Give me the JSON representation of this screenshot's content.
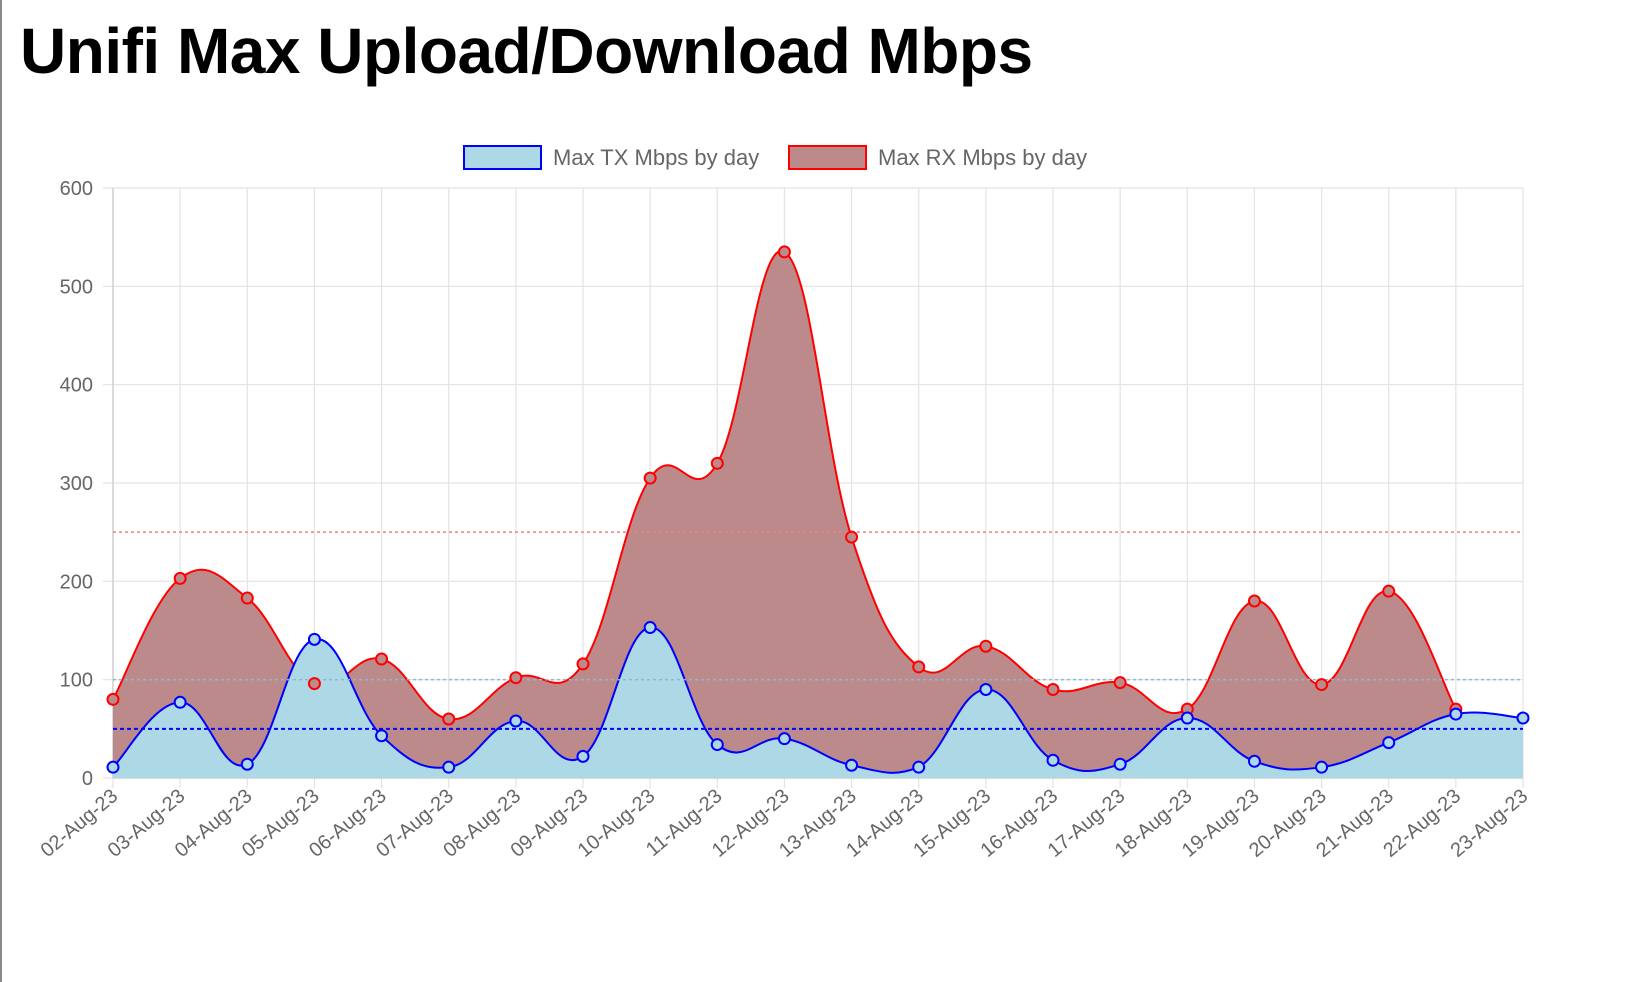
{
  "page": {
    "title": "Unifi Max Upload/Download Mbps"
  },
  "chart_data": {
    "type": "area",
    "categories": [
      "02-Aug-23",
      "03-Aug-23",
      "04-Aug-23",
      "05-Aug-23",
      "06-Aug-23",
      "07-Aug-23",
      "08-Aug-23",
      "09-Aug-23",
      "10-Aug-23",
      "11-Aug-23",
      "12-Aug-23",
      "13-Aug-23",
      "14-Aug-23",
      "15-Aug-23",
      "16-Aug-23",
      "17-Aug-23",
      "18-Aug-23",
      "19-Aug-23",
      "20-Aug-23",
      "21-Aug-23",
      "22-Aug-23",
      "23-Aug-23"
    ],
    "ylim": [
      0,
      600
    ],
    "yticks": [
      0,
      100,
      200,
      300,
      400,
      500,
      600
    ],
    "grid": true,
    "legend_position": "top",
    "series": [
      {
        "name": "Max TX Mbps by day",
        "values": [
          11,
          77,
          14,
          141,
          43,
          11,
          58,
          22,
          153,
          34,
          40,
          13,
          11,
          90,
          18,
          14,
          61,
          17,
          11,
          36,
          65,
          61
        ],
        "line_color": "#0000ff",
        "fill_color": "#add8e6",
        "reference_line": 50
      },
      {
        "name": "Max RX Mbps by day",
        "values": [
          80,
          203,
          183,
          96,
          121,
          60,
          102,
          116,
          305,
          320,
          535,
          245,
          113,
          134,
          90,
          97,
          70,
          180,
          95,
          190,
          70,
          null
        ],
        "line_color": "#ff0000",
        "fill_color": "#bc8a8a",
        "reference_line": 250
      }
    ],
    "extra_reference_line": {
      "value": 100,
      "color": "#8fb8cc"
    }
  }
}
